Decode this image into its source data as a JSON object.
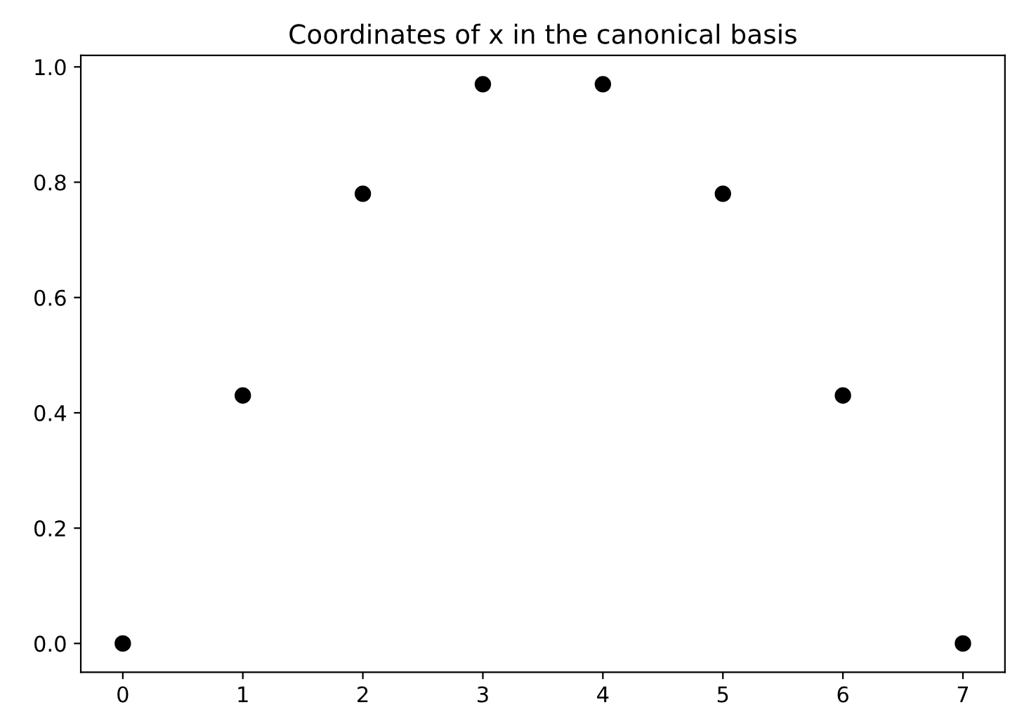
{
  "chart_data": {
    "type": "scatter",
    "title": "Coordinates of x in the canonical basis",
    "x": [
      0,
      1,
      2,
      3,
      4,
      5,
      6,
      7
    ],
    "series": [
      {
        "color": "#000000",
        "values": [
          0.0,
          0.43,
          0.78,
          0.97,
          0.97,
          0.78,
          0.43,
          0.0
        ]
      }
    ],
    "xlim": [
      -0.35,
      7.35
    ],
    "ylim": [
      -0.05,
      1.02
    ],
    "xticks": [
      0,
      1,
      2,
      3,
      4,
      5,
      6,
      7
    ],
    "yticks": [
      {
        "value": 0,
        "label": "0.0"
      },
      {
        "value": 0.2,
        "label": "0.2"
      },
      {
        "value": 0.4,
        "label": "0.4"
      },
      {
        "value": 0.6,
        "label": "0.6"
      },
      {
        "value": 0.8,
        "label": "0.8"
      },
      {
        "value": 1.0,
        "label": "1.0"
      }
    ],
    "marker": "circle",
    "grid": false,
    "legend": false
  }
}
